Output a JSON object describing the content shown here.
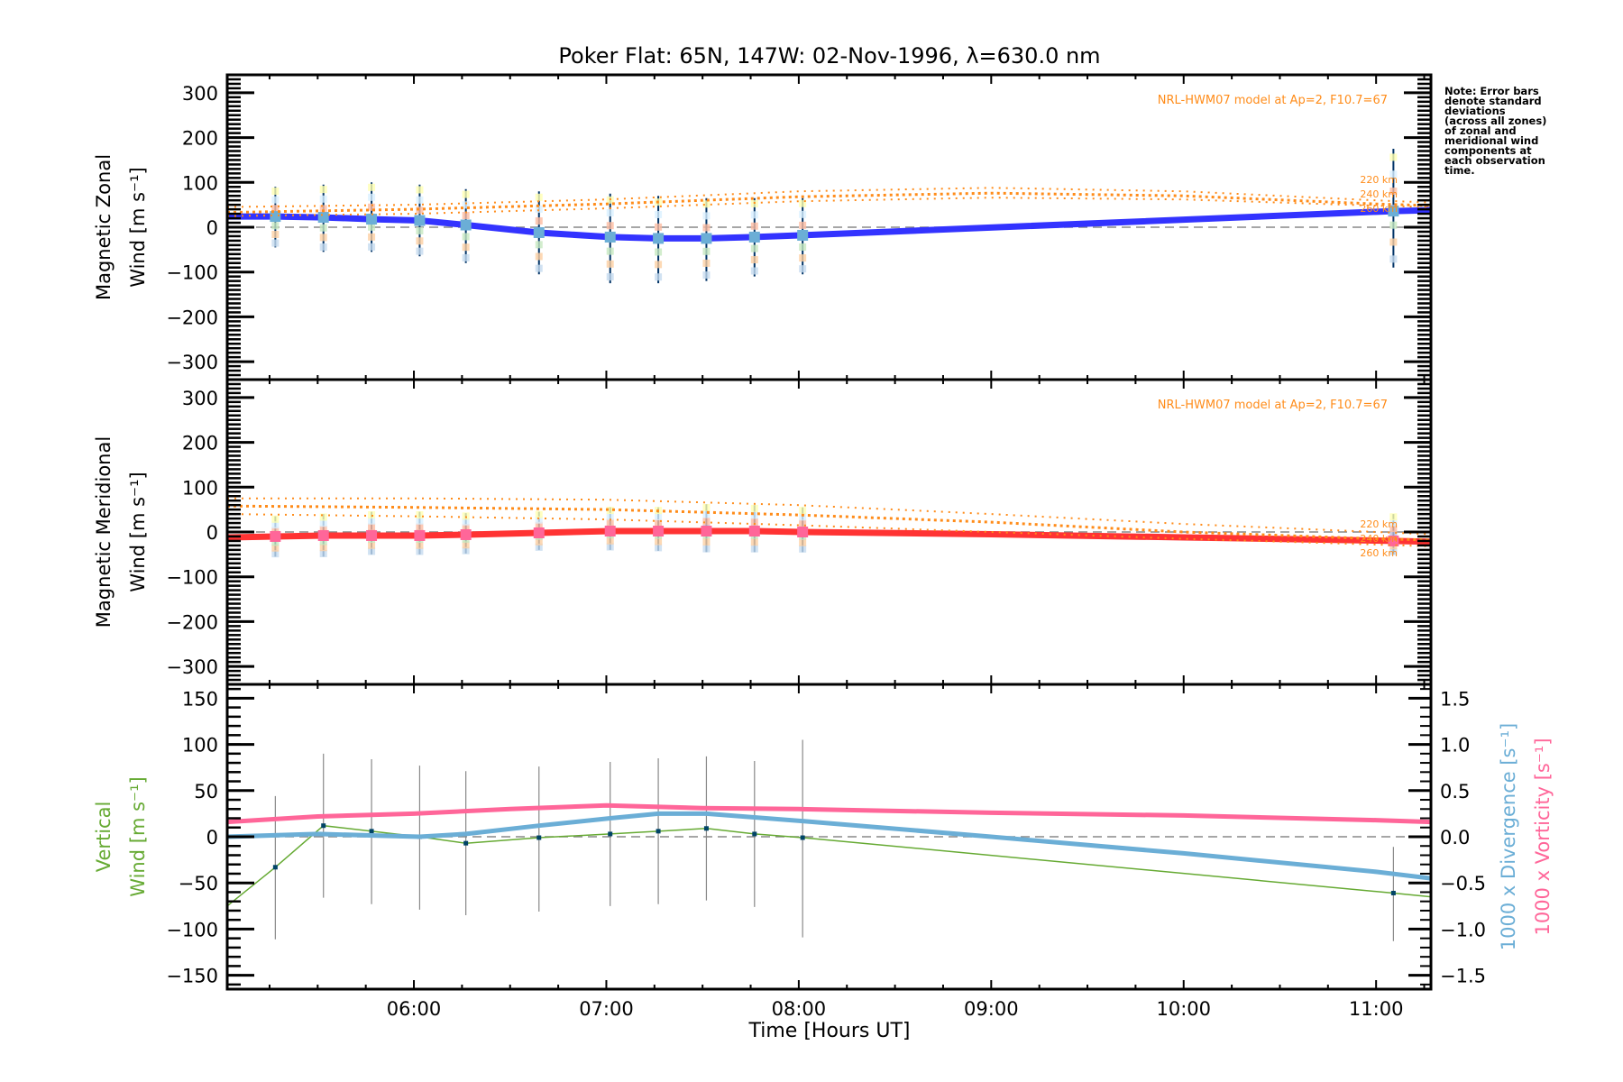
{
  "chart_data": {
    "type": "line",
    "title": "Poker Flat: 65N, 147W: 02-Nov-1996, λ=630.0 nm",
    "xlabel": "Time [Hours UT]",
    "xlim": [
      5.03,
      11.285
    ],
    "x_ticks": [
      6,
      7,
      8,
      9,
      10,
      11
    ],
    "x_tick_labels": [
      "06:00",
      "07:00",
      "08:00",
      "09:00",
      "10:00",
      "11:00"
    ],
    "observation_times": [
      5.28,
      5.53,
      5.78,
      6.03,
      6.27,
      6.65,
      7.02,
      7.27,
      7.52,
      7.77,
      8.02,
      11.09
    ],
    "note": [
      "Note: Error bars",
      "denote standard",
      "deviations",
      "(across all zones)",
      "of zonal and",
      "meridional wind",
      "components at",
      "each observation",
      "time."
    ],
    "panels": [
      {
        "name": "zonal",
        "ylabel_line1": "Magnetic Zonal",
        "ylabel_line2": "Wind [m s⁻¹]",
        "ylim": [
          -340,
          340
        ],
        "y_ticks": [
          -300,
          -200,
          -100,
          0,
          100,
          200,
          300
        ],
        "y_tick_labels": [
          "−300",
          "−200",
          "−100",
          "0",
          "100",
          "200",
          "300"
        ],
        "model_label": "NRL-HWM07 model at Ap=2, F10.7=67",
        "altitude_labels": [
          "220 km",
          "240 km",
          "260 km"
        ],
        "series": [
          {
            "name": "Zonal wind",
            "color": "#3333ff",
            "x": [
              5.03,
              5.28,
              5.53,
              5.78,
              6.03,
              6.27,
              6.65,
              7.02,
              7.27,
              7.52,
              7.77,
              8.02,
              11.09,
              11.285
            ],
            "y": [
              24,
              24,
              22,
              18,
              15,
              5,
              -12,
              -22,
              -25,
              -25,
              -22,
              -18,
              36,
              38
            ]
          },
          {
            "name": "Observed points",
            "color": "#6baed6",
            "x": [
              5.28,
              5.53,
              5.78,
              6.03,
              6.27,
              6.65,
              7.02,
              7.27,
              7.52,
              7.77,
              8.02,
              11.09
            ],
            "y": [
              24,
              22,
              18,
              15,
              5,
              -12,
              -22,
              -25,
              -25,
              -22,
              -18,
              36
            ],
            "err_low": [
              -45,
              -55,
              -55,
              -65,
              -80,
              -105,
              -125,
              -125,
              -120,
              -110,
              -105,
              -90
            ],
            "err_high": [
              90,
              95,
              100,
              95,
              85,
              80,
              75,
              70,
              65,
              65,
              65,
              175
            ]
          },
          {
            "name": "HWM07 220 km",
            "color": "#ff8c1a",
            "style": "dotted",
            "x": [
              5.03,
              6.0,
              7.0,
              8.0,
              9.0,
              10.0,
              11.0,
              11.285
            ],
            "y": [
              45,
              50,
              62,
              80,
              88,
              80,
              60,
              55
            ]
          },
          {
            "name": "HWM07 240 km",
            "color": "#ff8c1a",
            "style": "dotted-heavy",
            "x": [
              5.03,
              6.0,
              7.0,
              8.0,
              9.0,
              10.0,
              11.0,
              11.285
            ],
            "y": [
              33,
              40,
              52,
              68,
              76,
              70,
              52,
              48
            ]
          },
          {
            "name": "HWM07 260 km",
            "color": "#ff8c1a",
            "style": "dotted",
            "x": [
              5.03,
              6.0,
              7.0,
              8.0,
              9.0,
              10.0,
              11.0,
              11.285
            ],
            "y": [
              25,
              30,
              42,
              58,
              66,
              62,
              48,
              45
            ]
          }
        ]
      },
      {
        "name": "meridional",
        "ylabel_line1": "Magnetic Meridional",
        "ylabel_line2": "Wind [m s⁻¹]",
        "ylim": [
          -340,
          340
        ],
        "y_ticks": [
          -300,
          -200,
          -100,
          0,
          100,
          200,
          300
        ],
        "y_tick_labels": [
          "−300",
          "−200",
          "−100",
          "0",
          "100",
          "200",
          "300"
        ],
        "model_label": "NRL-HWM07 model at Ap=2, F10.7=67",
        "altitude_labels": [
          "220 km",
          "240 km",
          "260 km"
        ],
        "series": [
          {
            "name": "Meridional wind",
            "color": "#ff3333",
            "x": [
              5.03,
              5.28,
              5.53,
              5.78,
              6.03,
              6.27,
              6.65,
              7.02,
              7.27,
              7.52,
              7.77,
              8.02,
              9.0,
              10.0,
              11.09,
              11.285
            ],
            "y": [
              -12,
              -10,
              -8,
              -8,
              -8,
              -6,
              -2,
              2,
              2,
              2,
              2,
              0,
              -5,
              -12,
              -20,
              -22
            ],
            "style": "solid"
          },
          {
            "name": "Observed points",
            "color": "#ff6699",
            "x": [
              5.28,
              5.53,
              5.78,
              6.03,
              6.27,
              6.65,
              7.02,
              7.27,
              7.52,
              7.77,
              8.02,
              11.09
            ],
            "y": [
              -10,
              -8,
              -8,
              -8,
              -6,
              -2,
              2,
              2,
              2,
              2,
              0,
              -20
            ],
            "err_low": [
              -55,
              -55,
              -50,
              -50,
              -48,
              -40,
              -40,
              -42,
              -45,
              -45,
              -45,
              -50
            ],
            "err_high": [
              35,
              40,
              45,
              45,
              42,
              45,
              55,
              55,
              62,
              60,
              55,
              40
            ]
          },
          {
            "name": "HWM07 220 km",
            "color": "#ff8c1a",
            "style": "dotted",
            "x": [
              5.03,
              6.0,
              7.0,
              8.0,
              9.0,
              10.0,
              11.0,
              11.285
            ],
            "y": [
              75,
              75,
              72,
              60,
              40,
              18,
              0,
              -5
            ]
          },
          {
            "name": "HWM07 240 km",
            "color": "#ff8c1a",
            "style": "dotted-heavy",
            "x": [
              5.03,
              6.0,
              7.0,
              8.0,
              9.0,
              10.0,
              11.0,
              11.285
            ],
            "y": [
              58,
              55,
              50,
              38,
              22,
              0,
              -15,
              -18
            ]
          },
          {
            "name": "HWM07 260 km",
            "color": "#ff8c1a",
            "style": "dotted",
            "x": [
              5.03,
              6.0,
              7.0,
              8.0,
              9.0,
              10.0,
              11.0,
              11.285
            ],
            "y": [
              40,
              35,
              28,
              15,
              0,
              -15,
              -28,
              -32
            ]
          }
        ]
      },
      {
        "name": "vertical",
        "ylabel_line1": "Vertical",
        "ylabel_line2": "Wind [m s⁻¹]",
        "ylabel_color": "#66aa33",
        "ylim": [
          -165,
          165
        ],
        "y_ticks": [
          -150,
          -100,
          -50,
          0,
          50,
          100,
          150
        ],
        "y_tick_labels": [
          "−150",
          "−100",
          "−50",
          "0",
          "50",
          "100",
          "150"
        ],
        "y2lim": [
          -1.65,
          1.65
        ],
        "y2_ticks": [
          -1.5,
          -1.0,
          -0.5,
          0.0,
          0.5,
          1.0,
          1.5
        ],
        "y2_tick_labels": [
          "−1.5",
          "−1.0",
          "−0.5",
          "0.0",
          "0.5",
          "1.0",
          "1.5"
        ],
        "y2label_divergence": "1000 x Divergence [s⁻¹]",
        "y2label_vorticity": "1000 x Vorticity [s⁻¹]",
        "series": [
          {
            "name": "Vertical wind",
            "color": "#66aa33",
            "x": [
              5.03,
              5.28,
              5.53,
              5.78,
              6.03,
              6.27,
              6.65,
              7.02,
              7.27,
              7.52,
              7.77,
              8.02,
              11.09,
              11.285
            ],
            "y": [
              -75,
              -33,
              12,
              6,
              0,
              -7,
              -1,
              3,
              6,
              9,
              3,
              -1,
              -61,
              -65
            ],
            "err_low": [
              null,
              -111,
              -66,
              -73,
              -79,
              -85,
              -81,
              -75,
              -73,
              -69,
              -76,
              -109,
              -113,
              null
            ],
            "err_high": [
              null,
              44,
              90,
              84,
              77,
              71,
              76,
              81,
              85,
              87,
              82,
              105,
              -11,
              null
            ]
          },
          {
            "name": "1000 x Divergence",
            "color": "#6baed6",
            "axis": "y2",
            "x": [
              5.03,
              5.5,
              6.03,
              6.27,
              6.65,
              7.02,
              7.27,
              7.52,
              8.02,
              9.0,
              10.0,
              11.0,
              11.285
            ],
            "y": [
              0.0,
              0.03,
              0.0,
              0.03,
              0.12,
              0.2,
              0.25,
              0.25,
              0.17,
              0.0,
              -0.18,
              -0.38,
              -0.45
            ]
          },
          {
            "name": "1000 x Vorticity",
            "color": "#ff6699",
            "axis": "y2",
            "x": [
              5.03,
              5.5,
              6.0,
              6.5,
              7.0,
              7.5,
              8.0,
              9.0,
              10.0,
              11.0,
              11.285
            ],
            "y": [
              0.16,
              0.22,
              0.25,
              0.3,
              0.34,
              0.31,
              0.3,
              0.26,
              0.23,
              0.18,
              0.16
            ]
          }
        ]
      }
    ]
  }
}
